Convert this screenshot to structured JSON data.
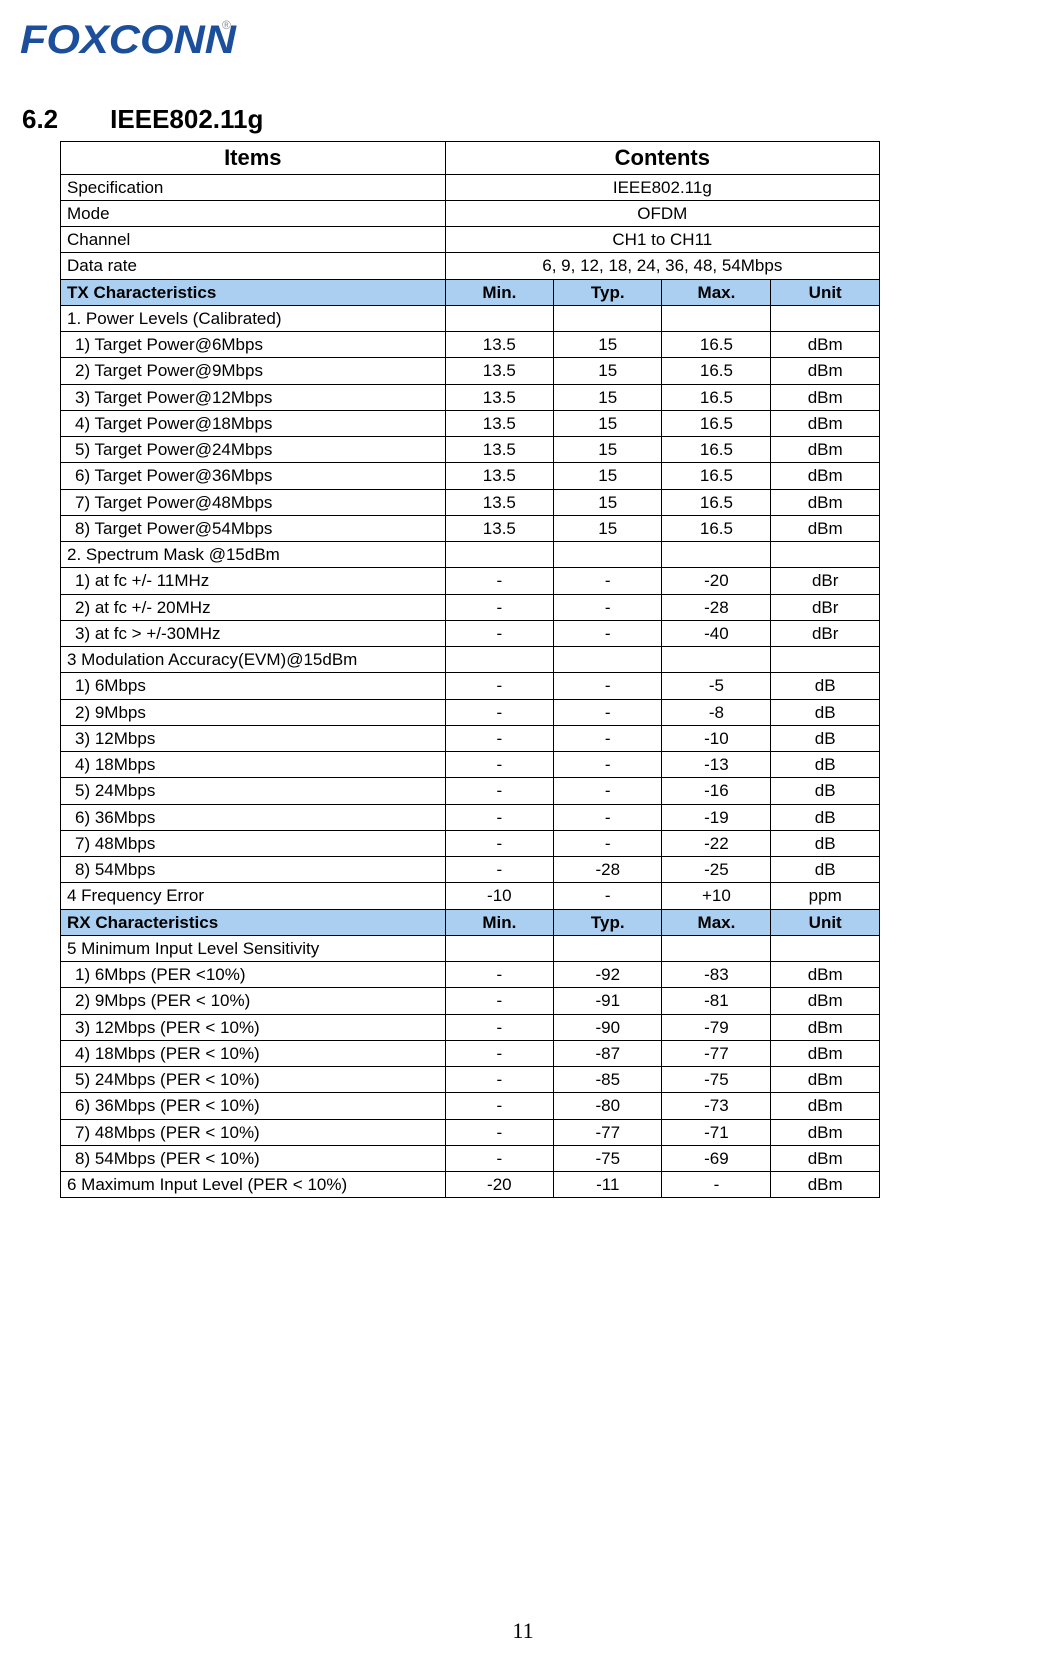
{
  "logo": {
    "text": "FOXCONN",
    "reg": "®"
  },
  "section": {
    "num": "6.2",
    "title": "IEEE802.11g"
  },
  "headers": {
    "items": "Items",
    "contents": "Contents",
    "min": "Min.",
    "typ": "Typ.",
    "max": "Max.",
    "unit": "Unit"
  },
  "info_rows": [
    {
      "label": "Specification",
      "value": "IEEE802.11g"
    },
    {
      "label": "Mode",
      "value": "OFDM"
    },
    {
      "label": "Channel",
      "value": "CH1 to CH11"
    },
    {
      "label": "Data rate",
      "value": "6, 9, 12, 18, 24, 36, 48, 54Mbps"
    }
  ],
  "tx": {
    "title": "TX Characteristics",
    "groups": [
      {
        "label": "1. Power Levels (Calibrated)",
        "indent": false,
        "rows": [
          {
            "label": "1) Target Power@6Mbps",
            "min": "13.5",
            "typ": "15",
            "max": "16.5",
            "unit": "dBm"
          },
          {
            "label": "2) Target Power@9Mbps",
            "min": "13.5",
            "typ": "15",
            "max": "16.5",
            "unit": "dBm"
          },
          {
            "label": "3) Target Power@12Mbps",
            "min": "13.5",
            "typ": "15",
            "max": "16.5",
            "unit": "dBm"
          },
          {
            "label": "4) Target Power@18Mbps",
            "min": "13.5",
            "typ": "15",
            "max": "16.5",
            "unit": "dBm"
          },
          {
            "label": "5) Target Power@24Mbps",
            "min": "13.5",
            "typ": "15",
            "max": "16.5",
            "unit": "dBm"
          },
          {
            "label": "6) Target Power@36Mbps",
            "min": "13.5",
            "typ": "15",
            "max": "16.5",
            "unit": "dBm"
          },
          {
            "label": "7) Target Power@48Mbps",
            "min": "13.5",
            "typ": "15",
            "max": "16.5",
            "unit": "dBm"
          },
          {
            "label": "8) Target Power@54Mbps",
            "min": "13.5",
            "typ": "15",
            "max": "16.5",
            "unit": "dBm"
          }
        ]
      },
      {
        "label": "2. Spectrum Mask @15dBm",
        "indent": false,
        "rows": [
          {
            "label": "1) at fc +/- 11MHz",
            "min": "-",
            "typ": "-",
            "max": "-20",
            "unit": "dBr"
          },
          {
            "label": "2) at fc +/- 20MHz",
            "min": "-",
            "typ": "-",
            "max": "-28",
            "unit": "dBr"
          },
          {
            "label": "3) at fc > +/-30MHz",
            "min": "-",
            "typ": "-",
            "max": "-40",
            "unit": "dBr"
          }
        ]
      },
      {
        "label": "3 Modulation Accuracy(EVM)@15dBm",
        "indent": false,
        "rows": [
          {
            "label": "1) 6Mbps",
            "min": "-",
            "typ": "-",
            "max": "-5",
            "unit": "dB"
          },
          {
            "label": "2) 9Mbps",
            "min": "-",
            "typ": "-",
            "max": "-8",
            "unit": "dB"
          },
          {
            "label": "3) 12Mbps",
            "min": "-",
            "typ": "-",
            "max": "-10",
            "unit": "dB"
          },
          {
            "label": "4) 18Mbps",
            "min": "-",
            "typ": "-",
            "max": "-13",
            "unit": "dB"
          },
          {
            "label": "5) 24Mbps",
            "min": "-",
            "typ": "-",
            "max": "-16",
            "unit": "dB"
          },
          {
            "label": "6) 36Mbps",
            "min": "-",
            "typ": "-",
            "max": "-19",
            "unit": "dB"
          },
          {
            "label": "7) 48Mbps",
            "min": "-",
            "typ": "-",
            "max": "-22",
            "unit": "dB"
          },
          {
            "label": "8) 54Mbps",
            "min": "-",
            "typ": "-28",
            "max": "-25",
            "unit": "dB"
          }
        ]
      },
      {
        "label": "4 Frequency Error",
        "indent": false,
        "single": true,
        "min": "-10",
        "typ": "-",
        "max": "+10",
        "unit": "ppm"
      }
    ]
  },
  "rx": {
    "title": "RX Characteristics",
    "groups": [
      {
        "label": "5 Minimum Input Level Sensitivity",
        "indent": false,
        "rows": [
          {
            "label": "1) 6Mbps (PER <10%)",
            "min": "-",
            "typ": "-92",
            "max": "-83",
            "unit": "dBm"
          },
          {
            "label": "2) 9Mbps (PER < 10%)",
            "min": "-",
            "typ": "-91",
            "max": "-81",
            "unit": "dBm"
          },
          {
            "label": "3) 12Mbps (PER < 10%)",
            "min": "-",
            "typ": "-90",
            "max": "-79",
            "unit": "dBm"
          },
          {
            "label": "4) 18Mbps (PER < 10%)",
            "min": "-",
            "typ": "-87",
            "max": "-77",
            "unit": "dBm"
          },
          {
            "label": "5) 24Mbps (PER < 10%)",
            "min": "-",
            "typ": "-85",
            "max": "-75",
            "unit": "dBm"
          },
          {
            "label": "6) 36Mbps (PER < 10%)",
            "min": "-",
            "typ": "-80",
            "max": "-73",
            "unit": "dBm"
          },
          {
            "label": "7) 48Mbps (PER < 10%)",
            "min": "-",
            "typ": "-77",
            "max": "-71",
            "unit": "dBm"
          },
          {
            "label": "8) 54Mbps (PER < 10%)",
            "min": "-",
            "typ": "-75",
            "max": "-69",
            "unit": "dBm"
          }
        ]
      },
      {
        "label": "6 Maximum Input Level (PER < 10%)",
        "indent": false,
        "single": true,
        "min": "-20",
        "typ": "-11",
        "max": "-",
        "unit": "dBm"
      }
    ]
  },
  "page_number": "11",
  "colors": {
    "section_header_bg": "#aacff0",
    "border": "#000000",
    "logo": "#1b4f9c"
  }
}
